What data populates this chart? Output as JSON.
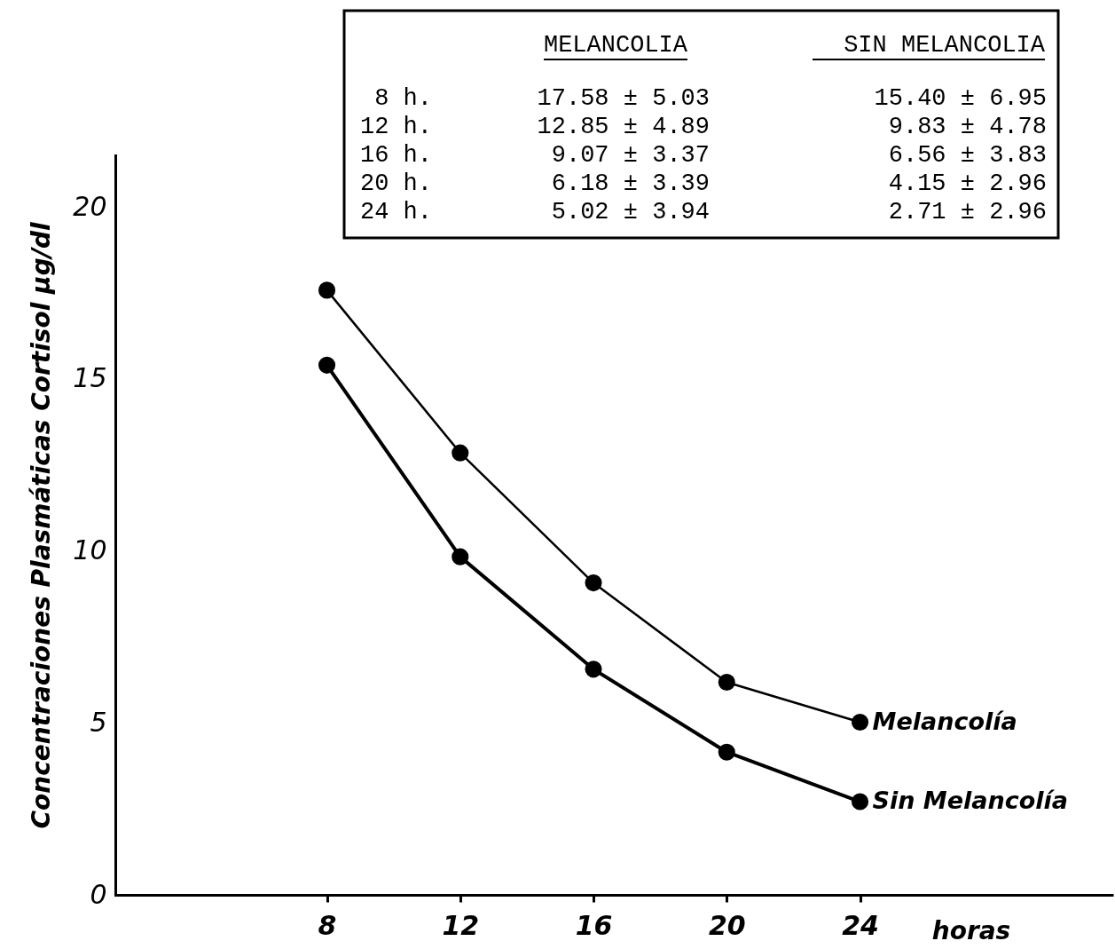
{
  "chart_data": {
    "type": "line",
    "xlabel": "horas",
    "ylabel": "Concentraciones Plasmáticas Cortisol µg/dl",
    "x": [
      8,
      12,
      16,
      20,
      24
    ],
    "series": [
      {
        "name": "Melancolía",
        "color": "#000000",
        "values": [
          17.58,
          12.85,
          9.07,
          6.18,
          5.02
        ]
      },
      {
        "name": "Sin Melancolía",
        "color": "#000000",
        "values": [
          15.4,
          9.83,
          6.56,
          4.15,
          2.71
        ]
      }
    ],
    "xlim": [
      1.65,
      31.6
    ],
    "ylim": [
      0,
      21.5
    ],
    "xticks": [
      8,
      12,
      16,
      20,
      24
    ],
    "yticks": [
      0,
      5,
      10,
      15,
      20
    ],
    "marker": "circle",
    "annotations": [
      "MELANCOLIA",
      "SIN MELANCOLIA",
      "8 h.",
      "17.58 ± 5.03",
      "15.40 ± 6.95",
      "12 h.",
      "12.85 ± 4.89",
      "9.83 ± 4.78",
      "16 h.",
      "9.07 ± 3.37",
      "6.56 ± 3.83",
      "20 h.",
      "6.18 ± 3.39",
      "4.15 ± 2.96",
      "24 h.",
      "5.02 ± 3.94",
      "2.71 ± 2.96"
    ]
  }
}
